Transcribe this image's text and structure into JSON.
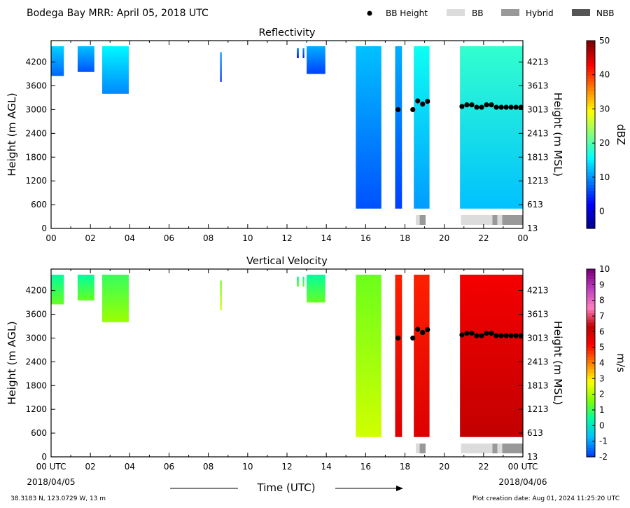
{
  "header": {
    "title": "Bodega Bay MRR:  April 05, 2018 UTC",
    "legend": [
      {
        "label": "BB Height",
        "kind": "dot",
        "color": "#000000"
      },
      {
        "label": "BB",
        "kind": "box",
        "color": "#dcdcdc"
      },
      {
        "label": "Hybrid",
        "kind": "box",
        "color": "#999999"
      },
      {
        "label": "NBB",
        "kind": "box",
        "color": "#555555"
      }
    ]
  },
  "footer": {
    "location": "38.3183 N, 123.0729 W, 13 m",
    "creation": "Plot creation date: Aug 01, 2024 11:25:20 UTC",
    "time_axis_label": "Time (UTC)",
    "start_date": "2018/04/05",
    "end_date": "2018/04/06"
  },
  "chart_data": [
    {
      "type": "heatmap",
      "title": "Reflectivity",
      "ylabel": "Height (m AGL)",
      "y2label": "Height (m MSL)",
      "colorbar_label": "dBZ",
      "xlim": [
        0,
        24
      ],
      "ylim": [
        0,
        4600
      ],
      "x_ticks": [
        "00",
        "02",
        "04",
        "06",
        "08",
        "10",
        "12",
        "14",
        "16",
        "18",
        "20",
        "22",
        "00"
      ],
      "y_ticks": [
        "0",
        "600",
        "1200",
        "1800",
        "2400",
        "3000",
        "3600",
        "4200"
      ],
      "y2_ticks": [
        "13",
        "613",
        "1213",
        "1813",
        "2413",
        "3013",
        "3613",
        "4213"
      ],
      "colorbar_ticks": [
        "0",
        "10",
        "20",
        "30",
        "40",
        "50"
      ],
      "colorbar_range": [
        -5,
        50
      ],
      "colormap": [
        "#00008f",
        "#0000ff",
        "#0080ff",
        "#00ffff",
        "#80ff80",
        "#ffff00",
        "#ff8000",
        "#ff0000",
        "#800000"
      ],
      "echo_segments": [
        {
          "t0": 0.0,
          "t1": 0.65,
          "top": 4600,
          "bottom": 3850,
          "value": 10
        },
        {
          "t0": 1.35,
          "t1": 2.2,
          "top": 4600,
          "bottom": 3950,
          "value": 9
        },
        {
          "t0": 2.6,
          "t1": 3.95,
          "top": 4600,
          "bottom": 3400,
          "value": 12
        },
        {
          "t0": 8.6,
          "t1": 8.68,
          "top": 4450,
          "bottom": 3700,
          "value": 7
        },
        {
          "t0": 12.5,
          "t1": 12.6,
          "top": 4550,
          "bottom": 4300,
          "value": 6
        },
        {
          "t0": 12.8,
          "t1": 12.88,
          "top": 4550,
          "bottom": 4300,
          "value": 6
        },
        {
          "t0": 13.0,
          "t1": 13.95,
          "top": 4600,
          "bottom": 3900,
          "value": 8
        },
        {
          "t0": 15.5,
          "t1": 16.8,
          "top": 4600,
          "bottom": 500,
          "value": 9
        },
        {
          "t0": 17.5,
          "t1": 17.85,
          "top": 4600,
          "bottom": 500,
          "value": 8
        },
        {
          "t0": 18.45,
          "t1": 19.25,
          "top": 4600,
          "bottom": 500,
          "value": 13
        },
        {
          "t0": 20.8,
          "t1": 24.0,
          "top": 4600,
          "bottom": 500,
          "value": 15
        }
      ],
      "bb_height": {
        "x": [
          17.65,
          18.4,
          18.65,
          18.9,
          19.15,
          20.9,
          21.15,
          21.4,
          21.65,
          21.9,
          22.15,
          22.4,
          22.65,
          22.9,
          23.15,
          23.4,
          23.65,
          23.9
        ],
        "y": [
          3000,
          3000,
          3220,
          3140,
          3210,
          3080,
          3120,
          3120,
          3060,
          3060,
          3120,
          3120,
          3060,
          3060,
          3060,
          3060,
          3060,
          3060
        ]
      },
      "bb_type_bar": [
        {
          "t0": 18.55,
          "t1": 18.75,
          "type": "BB"
        },
        {
          "t0": 18.75,
          "t1": 19.05,
          "type": "Hybrid"
        },
        {
          "t0": 20.85,
          "t1": 22.45,
          "type": "BB"
        },
        {
          "t0": 22.45,
          "t1": 22.7,
          "type": "Hybrid"
        },
        {
          "t0": 22.7,
          "t1": 22.95,
          "type": "BB"
        },
        {
          "t0": 22.95,
          "t1": 24.0,
          "type": "Hybrid"
        }
      ]
    },
    {
      "type": "heatmap",
      "title": "Vertical Velocity",
      "ylabel": "Height (m AGL)",
      "y2label": "Height (m MSL)",
      "colorbar_label": "m/s",
      "xlim": [
        0,
        24
      ],
      "ylim": [
        0,
        4600
      ],
      "x_ticks": [
        "00 UTC",
        "02",
        "04",
        "06",
        "08",
        "10",
        "12",
        "14",
        "16",
        "18",
        "20",
        "22",
        "00 UTC"
      ],
      "y_ticks": [
        "0",
        "600",
        "1200",
        "1800",
        "2400",
        "3000",
        "3600",
        "4200"
      ],
      "y2_ticks": [
        "13",
        "613",
        "1213",
        "1813",
        "2413",
        "3013",
        "3613",
        "4213"
      ],
      "colorbar_ticks": [
        "-2",
        "-1",
        "0",
        "1",
        "2",
        "3",
        "4",
        "5",
        "6",
        "7",
        "8",
        "9",
        "10"
      ],
      "colorbar_range": [
        -2,
        10
      ],
      "colormap": [
        "#0040ff",
        "#00c0ff",
        "#00ffa0",
        "#80ff00",
        "#ffff00",
        "#ff8000",
        "#ff0000",
        "#c00000",
        "#ff80c0",
        "#c040c0",
        "#800080"
      ],
      "echo_segments": [
        {
          "t0": 0.0,
          "t1": 0.65,
          "top": 4600,
          "bottom": 3850,
          "value": 1
        },
        {
          "t0": 1.35,
          "t1": 2.2,
          "top": 4600,
          "bottom": 3950,
          "value": 1
        },
        {
          "t0": 2.6,
          "t1": 3.95,
          "top": 4600,
          "bottom": 3400,
          "value": 1.5
        },
        {
          "t0": 8.6,
          "t1": 8.68,
          "top": 4450,
          "bottom": 3700,
          "value": 2
        },
        {
          "t0": 12.5,
          "t1": 12.6,
          "top": 4550,
          "bottom": 4300,
          "value": 1
        },
        {
          "t0": 12.8,
          "t1": 12.88,
          "top": 4550,
          "bottom": 4300,
          "value": 1
        },
        {
          "t0": 13.0,
          "t1": 13.95,
          "top": 4600,
          "bottom": 3900,
          "value": 1
        },
        {
          "t0": 15.5,
          "t1": 16.8,
          "top": 4600,
          "bottom": 500,
          "value": 2
        },
        {
          "t0": 17.5,
          "t1": 17.85,
          "top": 4600,
          "bottom": 500,
          "value": 5.5
        },
        {
          "t0": 18.45,
          "t1": 19.25,
          "top": 4600,
          "bottom": 500,
          "value": 5.5
        },
        {
          "t0": 20.8,
          "t1": 24.0,
          "top": 4600,
          "bottom": 500,
          "value": 6
        }
      ],
      "bb_height": {
        "x": [
          17.65,
          18.4,
          18.65,
          18.9,
          19.15,
          20.9,
          21.15,
          21.4,
          21.65,
          21.9,
          22.15,
          22.4,
          22.65,
          22.9,
          23.15,
          23.4,
          23.65,
          23.9
        ],
        "y": [
          3000,
          3000,
          3220,
          3140,
          3210,
          3080,
          3120,
          3120,
          3060,
          3060,
          3120,
          3120,
          3060,
          3060,
          3060,
          3060,
          3060,
          3060
        ]
      },
      "bb_type_bar": [
        {
          "t0": 18.55,
          "t1": 18.75,
          "type": "BB"
        },
        {
          "t0": 18.75,
          "t1": 19.05,
          "type": "Hybrid"
        },
        {
          "t0": 20.85,
          "t1": 22.45,
          "type": "BB"
        },
        {
          "t0": 22.45,
          "t1": 22.7,
          "type": "Hybrid"
        },
        {
          "t0": 22.7,
          "t1": 22.95,
          "type": "BB"
        },
        {
          "t0": 22.95,
          "t1": 24.0,
          "type": "Hybrid"
        }
      ]
    }
  ]
}
